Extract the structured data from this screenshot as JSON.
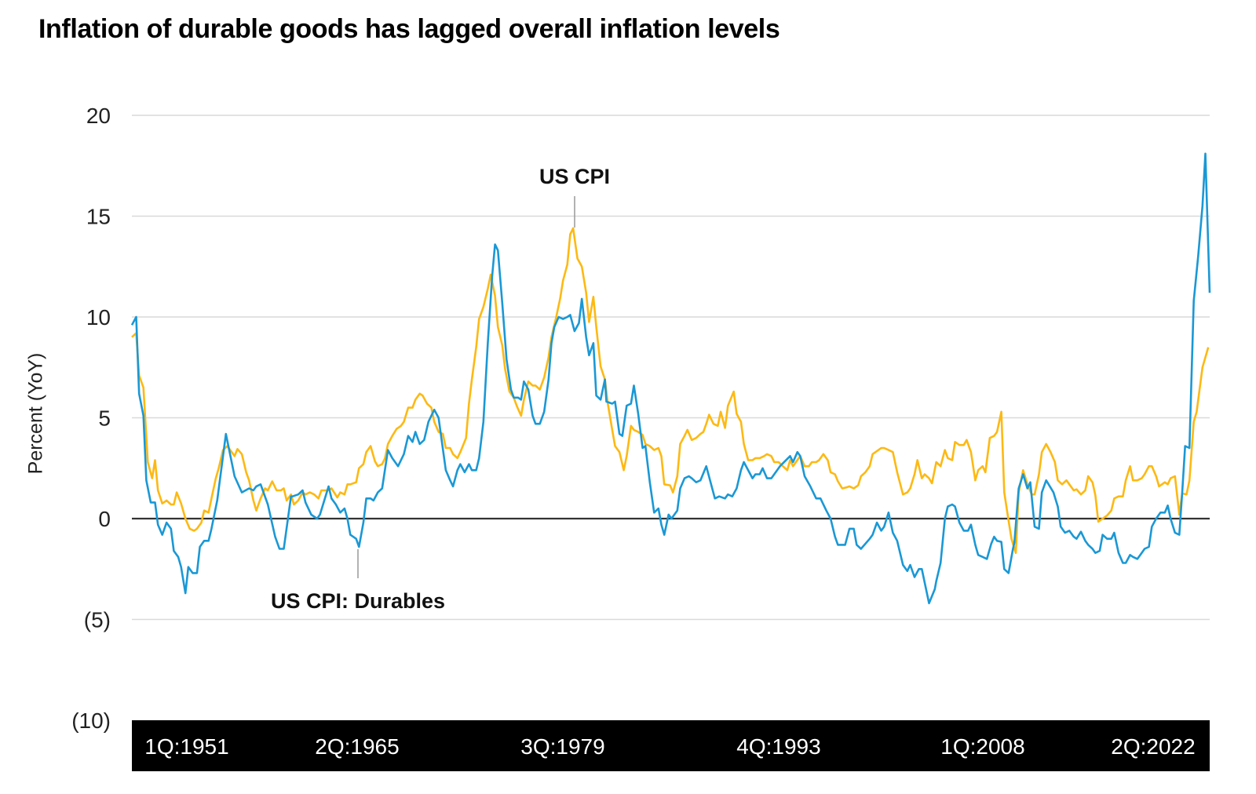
{
  "chart_data": {
    "type": "line",
    "title": "Inflation of durable goods has lagged overall inflation levels",
    "xlabel": "",
    "ylabel": "Percent (YoY)",
    "xlim": [
      1948.0,
      2022.5
    ],
    "ylim": [
      -10,
      20
    ],
    "grid": true,
    "y_ticks": [
      {
        "value": 20,
        "label": "20"
      },
      {
        "value": 15,
        "label": "15"
      },
      {
        "value": 10,
        "label": "10"
      },
      {
        "value": 5,
        "label": "5"
      },
      {
        "value": 0,
        "label": "0"
      },
      {
        "value": -5,
        "label": "(5)"
      },
      {
        "value": -10,
        "label": "(10)"
      }
    ],
    "x_tick_labels": [
      "1Q:1951",
      "2Q:1965",
      "3Q:1979",
      "4Q:1993",
      "1Q:2008",
      "2Q:2022"
    ],
    "annotations": [
      {
        "text": "US CPI",
        "series": "US CPI",
        "x": 1978.5,
        "y": 14.4
      },
      {
        "text": "US CPI: Durables",
        "series": "US CPI: Durables",
        "x": 1963.7,
        "y": -1.4
      }
    ],
    "series": [
      {
        "name": "US CPI",
        "color": "#fdb913",
        "x": [
          1948.0,
          1948.3,
          1948.5,
          1948.8,
          1949.1,
          1949.4,
          1949.6,
          1949.8,
          1950.1,
          1950.4,
          1950.7,
          1950.9,
          1951.1,
          1951.4,
          1951.7,
          1952.0,
          1952.3,
          1952.5,
          1952.8,
          1953.0,
          1953.3,
          1953.5,
          1953.8,
          1954.0,
          1954.3,
          1954.6,
          1954.8,
          1955.1,
          1955.3,
          1955.6,
          1955.9,
          1956.1,
          1956.4,
          1956.6,
          1956.9,
          1957.2,
          1957.4,
          1957.7,
          1958.0,
          1958.3,
          1958.5,
          1958.7,
          1959.0,
          1959.2,
          1959.5,
          1959.8,
          1960.0,
          1960.3,
          1960.6,
          1960.9,
          1961.1,
          1961.5,
          1961.8,
          1962.2,
          1962.4,
          1962.7,
          1962.9,
          1963.1,
          1963.5,
          1963.7,
          1964.0,
          1964.2,
          1964.5,
          1964.8,
          1965.0,
          1965.3,
          1965.5,
          1965.7,
          1966.0,
          1966.3,
          1966.6,
          1966.8,
          1967.1,
          1967.4,
          1967.6,
          1967.9,
          1968.1,
          1968.4,
          1968.7,
          1968.9,
          1969.2,
          1969.5,
          1969.7,
          1970.0,
          1970.2,
          1970.5,
          1970.7,
          1971.1,
          1971.3,
          1971.5,
          1971.8,
          1972.0,
          1972.3,
          1972.6,
          1972.8,
          1973.1,
          1973.3,
          1973.6,
          1973.8,
          1974.1,
          1974.4,
          1974.6,
          1974.9,
          1975.1,
          1975.4,
          1975.7,
          1975.9,
          1976.2,
          1976.5,
          1976.8,
          1977.0,
          1977.3,
          1977.6,
          1977.8,
          1978.1,
          1978.3,
          1978.5,
          1978.8,
          1979.1,
          1979.4,
          1979.6,
          1979.9,
          1980.1,
          1980.4,
          1980.7,
          1980.9,
          1981.2,
          1981.4,
          1981.7,
          1982.0,
          1982.2,
          1982.5,
          1982.7,
          1983.0,
          1983.3,
          1983.5,
          1983.8,
          1984.1,
          1984.4,
          1984.6,
          1984.8,
          1985.2,
          1985.4,
          1985.7,
          1985.9,
          1986.2,
          1986.4,
          1986.7,
          1987.0,
          1987.3,
          1987.5,
          1987.7,
          1987.9,
          1988.2,
          1988.5,
          1988.7,
          1989.0,
          1989.2,
          1989.6,
          1989.8,
          1990.1,
          1990.3,
          1990.6,
          1990.9,
          1991.1,
          1991.4,
          1991.7,
          1991.9,
          1992.2,
          1992.4,
          1992.7,
          1993.0,
          1993.3,
          1993.5,
          1993.7,
          1994.2,
          1994.5,
          1994.8,
          1995.0,
          1995.3,
          1995.5,
          1995.8,
          1996.1,
          1996.3,
          1996.6,
          1996.8,
          1997.1,
          1997.4,
          1997.6,
          1997.9,
          1998.2,
          1998.4,
          1998.7,
          1999.0,
          1999.2,
          1999.4,
          1999.8,
          2000.0,
          2000.3,
          2000.6,
          2000.9,
          2001.3,
          2001.6,
          2001.8,
          2002.1,
          2002.3,
          2002.6,
          2002.8,
          2003.1,
          2003.3,
          2003.6,
          2003.9,
          2004.2,
          2004.4,
          2004.7,
          2004.9,
          2005.2,
          2005.5,
          2005.7,
          2006.0,
          2006.3,
          2006.5,
          2006.8,
          2007.0,
          2007.3,
          2007.6,
          2007.8,
          2008.1,
          2008.3,
          2008.6,
          2008.8,
          2009.1,
          2009.3,
          2009.6,
          2009.9,
          2010.2,
          2010.4,
          2010.7,
          2010.9,
          2011.2,
          2011.5,
          2011.8,
          2012.0,
          2012.3,
          2012.6,
          2012.8,
          2013.1,
          2013.3,
          2013.6,
          2013.9,
          2014.1,
          2014.4,
          2014.6,
          2014.8,
          2015.1,
          2015.4,
          2015.7,
          2015.9,
          2016.2,
          2016.5,
          2016.7,
          2017.0,
          2017.2,
          2017.5,
          2017.8,
          2018.0,
          2018.3,
          2018.5,
          2018.8,
          2019.0,
          2019.4,
          2019.6,
          2019.8,
          2020.1,
          2020.4,
          2020.6,
          2020.9,
          2021.1,
          2021.4,
          2021.6,
          2022.0,
          2022.4
        ],
        "y": [
          9.0,
          9.2,
          7.1,
          6.5,
          2.8,
          2.0,
          2.9,
          1.4,
          0.75,
          0.9,
          0.7,
          0.7,
          1.3,
          0.75,
          0.0,
          -0.5,
          -0.6,
          -0.5,
          -0.2,
          0.4,
          0.3,
          1.0,
          2.0,
          2.5,
          3.4,
          3.6,
          3.4,
          3.1,
          3.45,
          3.2,
          2.3,
          1.9,
          0.9,
          0.4,
          1.0,
          1.5,
          1.4,
          1.85,
          1.4,
          1.4,
          1.5,
          0.9,
          1.2,
          0.7,
          0.9,
          1.3,
          1.2,
          1.3,
          1.2,
          1.0,
          1.4,
          1.4,
          1.5,
          1.05,
          1.3,
          1.2,
          1.7,
          1.7,
          1.8,
          2.5,
          2.7,
          3.3,
          3.6,
          2.85,
          2.6,
          2.7,
          3.0,
          3.7,
          4.1,
          4.45,
          4.6,
          4.8,
          5.5,
          5.5,
          5.9,
          6.2,
          6.1,
          5.7,
          5.5,
          4.8,
          4.3,
          4.2,
          3.5,
          3.5,
          3.2,
          3.0,
          3.3,
          4.0,
          5.7,
          6.9,
          8.5,
          9.9,
          10.5,
          11.4,
          12.1,
          11.05,
          9.5,
          8.6,
          7.4,
          6.3,
          6.0,
          5.6,
          5.1,
          5.9,
          6.8,
          6.6,
          6.6,
          6.4,
          7.0,
          8.0,
          9.0,
          9.9,
          10.9,
          11.8,
          12.6,
          14.1,
          14.4,
          12.9,
          12.5,
          11.2,
          9.75,
          11.0,
          9.5,
          7.55,
          6.9,
          5.7,
          4.4,
          3.6,
          3.3,
          2.4,
          3.1,
          4.6,
          4.4,
          4.3,
          4.15,
          3.7,
          3.6,
          3.4,
          3.5,
          3.1,
          1.7,
          1.65,
          1.3,
          2.1,
          3.7,
          4.1,
          4.4,
          3.9,
          4.0,
          4.2,
          4.3,
          4.7,
          5.15,
          4.7,
          4.6,
          5.3,
          4.5,
          5.6,
          6.3,
          5.2,
          4.8,
          3.7,
          2.9,
          2.9,
          3.0,
          3.0,
          3.1,
          3.2,
          3.1,
          2.8,
          2.8,
          2.6,
          2.4,
          2.9,
          2.6,
          3.1,
          2.6,
          2.6,
          2.8,
          2.8,
          2.9,
          3.2,
          2.9,
          2.3,
          2.2,
          1.85,
          1.5,
          1.55,
          1.6,
          1.5,
          1.65,
          2.1,
          2.3,
          2.6,
          3.2,
          3.3,
          3.5,
          3.5,
          3.4,
          3.3,
          2.3,
          1.2,
          1.3,
          1.5,
          2.2,
          2.9,
          2.0,
          2.2,
          2.0,
          1.75,
          2.8,
          2.6,
          3.4,
          3.0,
          2.9,
          3.8,
          3.65,
          3.65,
          3.9,
          3.3,
          1.9,
          2.4,
          2.6,
          2.3,
          4.0,
          4.1,
          4.3,
          5.3,
          1.3,
          -0.1,
          -1.0,
          -1.7,
          1.3,
          2.4,
          1.7,
          1.2,
          1.2,
          2.2,
          3.3,
          3.7,
          3.3,
          2.8,
          1.9,
          1.7,
          1.9,
          1.7,
          1.4,
          1.45,
          1.2,
          1.4,
          2.1,
          1.8,
          1.15,
          -0.15,
          0.0,
          0.15,
          0.4,
          1.0,
          1.1,
          1.1,
          1.9,
          2.6,
          1.9,
          1.9,
          2.0,
          2.2,
          2.6,
          2.6,
          2.1,
          1.6,
          1.8,
          1.7,
          2.0,
          2.1,
          0.2,
          1.25,
          1.2,
          1.9,
          4.8,
          5.3,
          7.5,
          8.5
        ]
      },
      {
        "name": "US CPI: Durables",
        "color": "#1a98d5",
        "x": [
          1948.0,
          1948.3,
          1948.5,
          1948.8,
          1949.0,
          1949.3,
          1949.6,
          1949.8,
          1950.1,
          1950.4,
          1950.7,
          1950.9,
          1951.2,
          1951.4,
          1951.7,
          1951.9,
          1952.2,
          1952.5,
          1952.7,
          1953.0,
          1953.3,
          1953.5,
          1953.9,
          1954.5,
          1955.1,
          1955.6,
          1956.1,
          1956.4,
          1956.6,
          1956.9,
          1957.4,
          1957.9,
          1958.2,
          1958.5,
          1959.0,
          1959.1,
          1959.5,
          1959.8,
          1960.0,
          1960.4,
          1960.8,
          1961.0,
          1961.6,
          1961.8,
          1962.1,
          1962.4,
          1962.7,
          1962.9,
          1963.1,
          1963.5,
          1963.7,
          1964.0,
          1964.2,
          1964.5,
          1964.7,
          1965.0,
          1965.3,
          1965.7,
          1966.0,
          1966.4,
          1966.8,
          1967.1,
          1967.4,
          1967.6,
          1967.9,
          1968.2,
          1968.5,
          1968.9,
          1969.2,
          1969.7,
          1970.0,
          1970.2,
          1970.5,
          1970.7,
          1971.0,
          1971.3,
          1971.5,
          1971.8,
          1972.0,
          1972.3,
          1972.6,
          1972.9,
          1973.1,
          1973.3,
          1973.6,
          1973.9,
          1974.2,
          1974.4,
          1974.7,
          1974.9,
          1975.1,
          1975.4,
          1975.7,
          1975.9,
          1976.2,
          1976.5,
          1976.8,
          1977.0,
          1977.2,
          1977.5,
          1977.8,
          1978.1,
          1978.3,
          1978.6,
          1978.9,
          1979.1,
          1979.4,
          1979.6,
          1979.9,
          1980.1,
          1980.4,
          1980.7,
          1980.8,
          1981.2,
          1981.4,
          1981.7,
          1981.9,
          1982.2,
          1982.5,
          1982.7,
          1983.0,
          1983.3,
          1983.5,
          1983.8,
          1984.1,
          1984.4,
          1984.6,
          1984.8,
          1985.1,
          1985.3,
          1985.7,
          1985.9,
          1986.2,
          1986.5,
          1986.7,
          1987.0,
          1987.3,
          1987.7,
          1988.3,
          1988.6,
          1989.0,
          1989.2,
          1989.5,
          1989.8,
          1990.1,
          1990.3,
          1990.9,
          1991.1,
          1991.4,
          1991.6,
          1991.9,
          1992.2,
          1992.8,
          1993.5,
          1993.7,
          1994.0,
          1994.2,
          1994.5,
          1994.9,
          1995.3,
          1995.6,
          1996.0,
          1996.3,
          1996.6,
          1996.8,
          1997.3,
          1997.6,
          1997.9,
          1998.1,
          1998.4,
          1999.0,
          1999.2,
          1999.5,
          1999.8,
          2000.0,
          2000.3,
          2000.6,
          2000.9,
          2001.3,
          2001.6,
          2001.8,
          2002.1,
          2002.4,
          2002.6,
          2003.1,
          2003.5,
          2003.6,
          2003.9,
          2004.2,
          2004.4,
          2004.7,
          2004.9,
          2005.2,
          2005.5,
          2005.8,
          2006.0,
          2006.3,
          2006.5,
          2006.8,
          2007.1,
          2007.4,
          2007.6,
          2007.8,
          2008.1,
          2008.3,
          2008.6,
          2008.9,
          2009.0,
          2009.3,
          2009.6,
          2009.9,
          2010.1,
          2010.4,
          2010.7,
          2010.9,
          2011.2,
          2011.7,
          2012.0,
          2012.2,
          2012.5,
          2012.8,
          2013.1,
          2013.3,
          2013.6,
          2013.9,
          2014.1,
          2014.4,
          2014.6,
          2014.9,
          2015.1,
          2015.4,
          2015.7,
          2015.9,
          2016.2,
          2016.5,
          2016.7,
          2017.0,
          2017.2,
          2017.5,
          2017.8,
          2018.0,
          2018.3,
          2018.5,
          2018.8,
          2019.1,
          2019.4,
          2019.6,
          2019.8,
          2020.1,
          2020.4,
          2020.6,
          2020.8,
          2021.1,
          2021.4,
          2021.7,
          2022.0,
          2022.2,
          2022.5
        ],
        "y": [
          9.6,
          10.0,
          6.2,
          5.1,
          1.9,
          0.8,
          0.8,
          -0.3,
          -0.8,
          -0.2,
          -0.5,
          -1.6,
          -1.9,
          -2.4,
          -3.7,
          -2.4,
          -2.7,
          -2.7,
          -1.4,
          -1.1,
          -1.1,
          -0.5,
          0.9,
          4.2,
          2.1,
          1.3,
          1.5,
          1.4,
          1.6,
          1.7,
          0.7,
          -0.9,
          -1.5,
          -1.5,
          1.1,
          1.1,
          1.2,
          1.4,
          0.8,
          0.2,
          0.0,
          0.2,
          1.6,
          1.0,
          0.7,
          0.3,
          0.5,
          0.0,
          -0.8,
          -1.0,
          -1.4,
          -0.2,
          1.0,
          1.0,
          0.9,
          1.3,
          1.5,
          3.4,
          3.0,
          2.6,
          3.2,
          4.1,
          3.8,
          4.3,
          3.7,
          3.9,
          4.8,
          5.4,
          5.0,
          2.4,
          1.9,
          1.6,
          2.4,
          2.7,
          2.3,
          2.7,
          2.4,
          2.4,
          3.0,
          4.8,
          8.7,
          12.0,
          13.6,
          13.3,
          10.7,
          7.9,
          6.4,
          6.0,
          6.0,
          5.9,
          6.8,
          6.4,
          5.1,
          4.7,
          4.7,
          5.3,
          6.9,
          8.7,
          9.5,
          10.0,
          9.9,
          10.0,
          10.1,
          9.3,
          9.7,
          10.9,
          9.0,
          8.1,
          8.7,
          6.1,
          5.9,
          6.9,
          5.8,
          5.7,
          5.8,
          4.2,
          4.1,
          5.6,
          5.7,
          6.6,
          5.2,
          3.5,
          3.6,
          1.8,
          0.3,
          0.5,
          -0.3,
          -0.8,
          0.2,
          0.0,
          0.4,
          1.5,
          2.0,
          2.1,
          2.0,
          1.8,
          1.9,
          2.6,
          1.0,
          1.1,
          1.0,
          1.2,
          1.1,
          1.5,
          2.4,
          2.8,
          2.0,
          2.2,
          2.2,
          2.5,
          2.0,
          2.0,
          2.6,
          3.1,
          2.8,
          3.3,
          3.1,
          2.1,
          1.6,
          1.0,
          1.0,
          0.4,
          0.0,
          -0.9,
          -1.3,
          -1.3,
          -0.5,
          -0.5,
          -1.3,
          -1.5,
          -1.0,
          -0.8,
          -0.2,
          -0.6,
          -0.4,
          0.3,
          -0.7,
          -1.1,
          -2.3,
          -2.6,
          -2.3,
          -2.9,
          -2.5,
          -2.5,
          -4.2,
          -3.5,
          -3.1,
          -2.2,
          0.0,
          0.6,
          0.7,
          0.6,
          -0.2,
          -0.6,
          -0.6,
          -0.3,
          -1.3,
          -1.8,
          -1.9,
          -2.0,
          -1.25,
          -0.9,
          -1.1,
          -1.15,
          -2.5,
          -2.7,
          -1.5,
          -1.2,
          1.5,
          2.2,
          1.5,
          1.8,
          -0.4,
          -0.5,
          1.3,
          1.9,
          1.3,
          0.6,
          -0.4,
          -0.7,
          -0.6,
          -0.9,
          -1.0,
          -0.65,
          -1.1,
          -1.3,
          -1.5,
          -1.7,
          -1.6,
          -0.8,
          -1.0,
          -1.0,
          -0.7,
          -1.7,
          -2.2,
          -2.2,
          -1.8,
          -1.9,
          -2.0,
          -1.7,
          -1.5,
          -1.4,
          -0.4,
          0.0,
          0.3,
          0.3,
          0.65,
          0.0,
          -0.7,
          -0.8,
          1.3,
          3.6,
          3.5,
          10.8,
          13.0,
          15.5,
          18.1,
          11.2
        ]
      }
    ]
  }
}
